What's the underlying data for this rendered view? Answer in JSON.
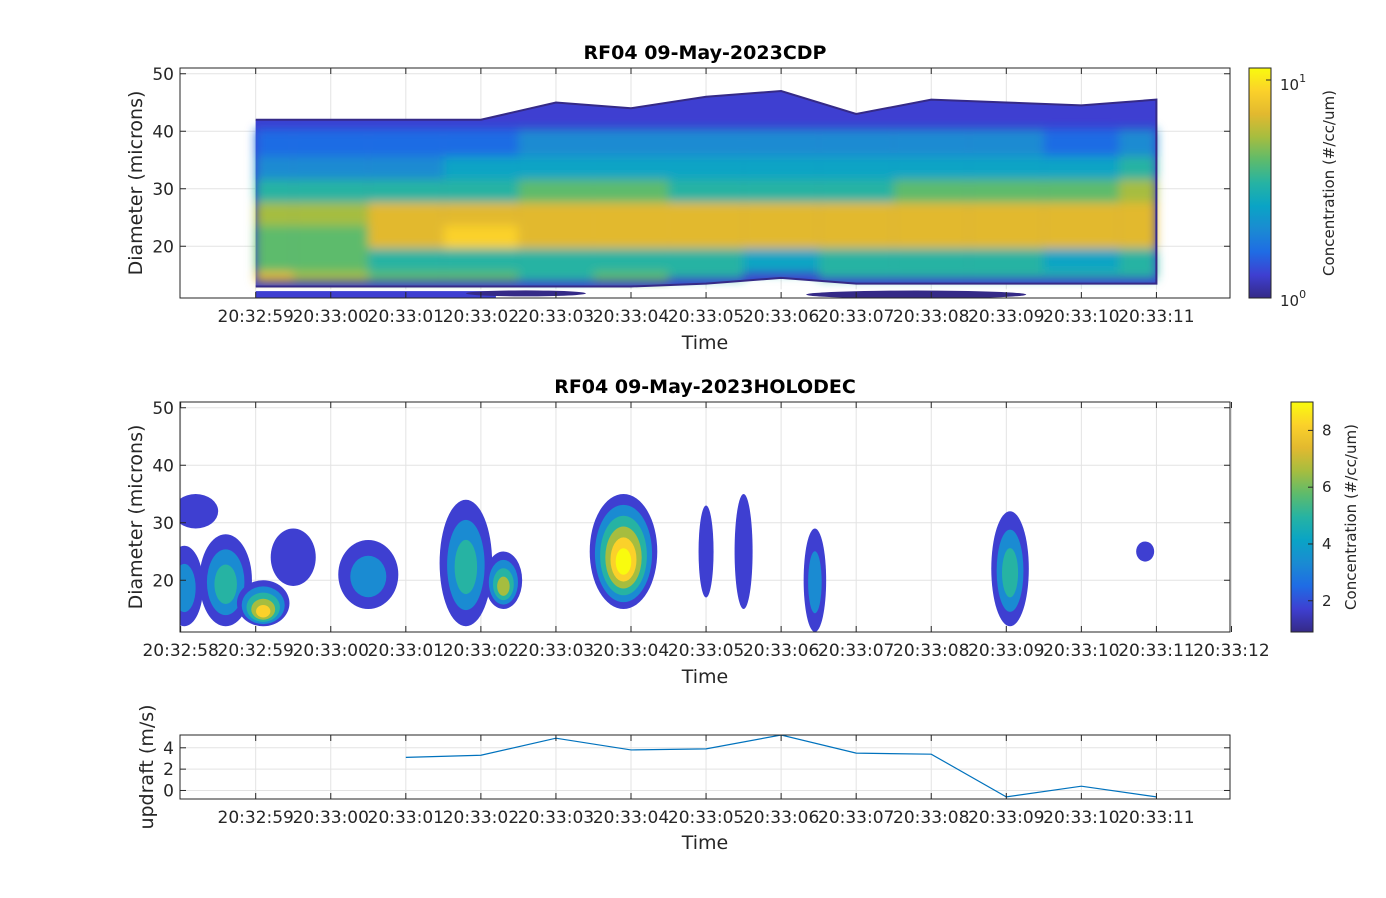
{
  "colors": {
    "parula": [
      "#352a87",
      "#3e3fd1",
      "#1f6ce4",
      "#1a8bd2",
      "#0aa4c5",
      "#26b3a3",
      "#5dbb6c",
      "#a6bd3f",
      "#e2b92f",
      "#fbd12a",
      "#f9fb0e"
    ],
    "line": "#0072bd",
    "grid": "#e3e3e3",
    "axes": "#262626"
  },
  "chart_data": [
    {
      "type": "heatmap",
      "title": "RF04 09-May-2023CDP",
      "xlabel": "Time",
      "ylabel": "Diameter (microns)",
      "colorbar_label": "Concentration (#/cc/um)",
      "colorbar_scale": "log",
      "colorbar_ticks": [
        {
          "base": "10",
          "exp": "1"
        },
        {
          "base": "10",
          "exp": "0"
        }
      ],
      "x_ticks": [
        "20:32:59",
        "20:33:00",
        "20:33:01",
        "20:33:02",
        "20:33:03",
        "20:33:04",
        "20:33:05",
        "20:33:06",
        "20:33:07",
        "20:33:08",
        "20:33:09",
        "20:33:10",
        "20:33:11"
      ],
      "y_ticks": [
        20,
        30,
        40,
        50
      ],
      "ylim": [
        11,
        51
      ],
      "diameter_bins": [
        14,
        18,
        22,
        26,
        30,
        34,
        38
      ],
      "top_edge": [
        42,
        42,
        42,
        42,
        45,
        44,
        46,
        47,
        43,
        45.5,
        45,
        44.5,
        45.5
      ],
      "bottom_edge": [
        13,
        13,
        13,
        13,
        13,
        13,
        13.5,
        14.5,
        13.5,
        13.5,
        13.5,
        13.5,
        13.5
      ],
      "concentration_level_index": [
        [
          8,
          7,
          6,
          6,
          5,
          6,
          5,
          5,
          5,
          5,
          5,
          5,
          5
        ],
        [
          6,
          6,
          5,
          5,
          5,
          5,
          5,
          4,
          5,
          5,
          5,
          4,
          5
        ],
        [
          6,
          6,
          8,
          9,
          8,
          8,
          8,
          8,
          8,
          8,
          8,
          8,
          8
        ],
        [
          7,
          7,
          8,
          8,
          8,
          8,
          8,
          8,
          8,
          8,
          8,
          8,
          8
        ],
        [
          5,
          5,
          5,
          5,
          6,
          6,
          5,
          5,
          5,
          6,
          6,
          6,
          7
        ],
        [
          3,
          3,
          3,
          4,
          4,
          4,
          4,
          4,
          4,
          4,
          4,
          4,
          5
        ],
        [
          2,
          2,
          2,
          2,
          3,
          3,
          3,
          3,
          3,
          3,
          3,
          2,
          3
        ]
      ]
    },
    {
      "type": "heatmap",
      "title": "RF04 09-May-2023HOLODEC",
      "xlabel": "Time",
      "ylabel": "Diameter (microns)",
      "colorbar_label": "Concentration (#/cc/um)",
      "colorbar_ticks": [
        "8",
        "6",
        "4",
        "2"
      ],
      "x_ticks": [
        "20:32:58",
        "20:32:59",
        "20:33:00",
        "20:33:01",
        "20:33:02",
        "20:33:03",
        "20:33:04",
        "20:33:05",
        "20:33:06",
        "20:33:07",
        "20:33:08",
        "20:33:09",
        "20:33:10",
        "20:33:11",
        "20:33:12"
      ],
      "y_ticks": [
        20,
        30,
        40,
        50
      ],
      "ylim": [
        11,
        51
      ],
      "blobs": [
        {
          "t": 0.05,
          "d": 19,
          "w": 0.25,
          "h": 14,
          "level": 1
        },
        {
          "t": 0.2,
          "d": 32,
          "w": 0.3,
          "h": 6,
          "level": 0
        },
        {
          "t": 0.6,
          "d": 20,
          "w": 0.35,
          "h": 16,
          "level": 2
        },
        {
          "t": 1.1,
          "d": 16,
          "w": 0.35,
          "h": 8,
          "level": 4
        },
        {
          "t": 1.5,
          "d": 24,
          "w": 0.3,
          "h": 10,
          "level": 0
        },
        {
          "t": 2.5,
          "d": 21,
          "w": 0.4,
          "h": 12,
          "level": 1
        },
        {
          "t": 3.8,
          "d": 23,
          "w": 0.35,
          "h": 22,
          "level": 2
        },
        {
          "t": 4.3,
          "d": 20,
          "w": 0.25,
          "h": 10,
          "level": 3
        },
        {
          "t": 5.9,
          "d": 25,
          "w": 0.45,
          "h": 20,
          "level": 5
        },
        {
          "t": 7.0,
          "d": 25,
          "w": 0.1,
          "h": 16,
          "level": 0
        },
        {
          "t": 7.5,
          "d": 25,
          "w": 0.12,
          "h": 20,
          "level": 0
        },
        {
          "t": 8.45,
          "d": 20,
          "w": 0.15,
          "h": 18,
          "level": 1
        },
        {
          "t": 11.05,
          "d": 22,
          "w": 0.25,
          "h": 20,
          "level": 2
        },
        {
          "t": 12.85,
          "d": 25,
          "w": 0.12,
          "h": 3.5,
          "level": 0
        }
      ]
    },
    {
      "type": "line",
      "xlabel": "Time",
      "ylabel": "updraft (m/s)",
      "x_ticks": [
        "20:32:59",
        "20:33:00",
        "20:33:01",
        "20:33:02",
        "20:33:03",
        "20:33:04",
        "20:33:05",
        "20:33:06",
        "20:33:07",
        "20:33:08",
        "20:33:09",
        "20:33:10",
        "20:33:11"
      ],
      "y_ticks": [
        0,
        2,
        4
      ],
      "ylim": [
        -0.8,
        5.2
      ],
      "x": [
        "20:33:01",
        "20:33:02",
        "20:33:03",
        "20:33:04",
        "20:33:05",
        "20:33:06",
        "20:33:07",
        "20:33:08",
        "20:33:09",
        "20:33:10",
        "20:33:11"
      ],
      "values": [
        3.1,
        3.3,
        4.9,
        3.8,
        3.9,
        5.2,
        3.5,
        3.4,
        -0.6,
        0.4,
        -0.6
      ]
    }
  ]
}
